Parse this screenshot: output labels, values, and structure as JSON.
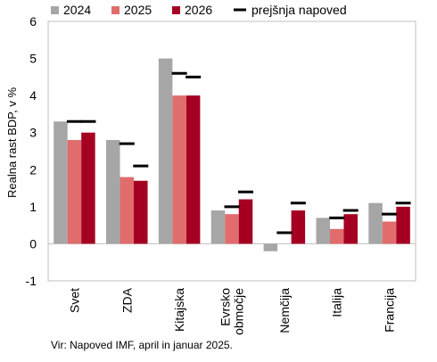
{
  "chart_data": {
    "type": "bar",
    "ylabel": "Realna rast BDP, v %",
    "ylim": [
      -1,
      6
    ],
    "yticks": [
      "-1",
      "0",
      "1",
      "2",
      "3",
      "4",
      "5",
      "6"
    ],
    "categories": [
      "Svet",
      "ZDA",
      "Kitajska",
      "Evrsko območje",
      "Nemčija",
      "Italija",
      "Francija"
    ],
    "category_lines": [
      [
        "Svet"
      ],
      [
        "ZDA"
      ],
      [
        "Kitajska"
      ],
      [
        "Evrsko",
        "območje"
      ],
      [
        "Nemčija"
      ],
      [
        "Italija"
      ],
      [
        "Francija"
      ]
    ],
    "series": [
      {
        "name": "2024",
        "color": "#a6a6a6",
        "values": [
          3.3,
          2.8,
          5.0,
          0.9,
          -0.2,
          0.7,
          1.1
        ]
      },
      {
        "name": "2025",
        "color": "#e06c6c",
        "values": [
          2.8,
          1.8,
          4.0,
          0.8,
          0.0,
          0.4,
          0.6
        ]
      },
      {
        "name": "2026",
        "color": "#a50021",
        "values": [
          3.0,
          1.7,
          4.0,
          1.2,
          0.9,
          0.8,
          1.0
        ]
      }
    ],
    "previous_forecast": {
      "name": "prejšnja napoved",
      "color": "#000000",
      "marks_2025": [
        3.3,
        2.7,
        4.6,
        1.0,
        0.3,
        0.7,
        0.8
      ],
      "marks_2026": [
        3.3,
        2.1,
        4.5,
        1.4,
        1.1,
        0.9,
        1.1
      ]
    },
    "legend_position": "top",
    "grid": false
  },
  "source_note": "Vir: Napoved IMF, april in januar 2025."
}
